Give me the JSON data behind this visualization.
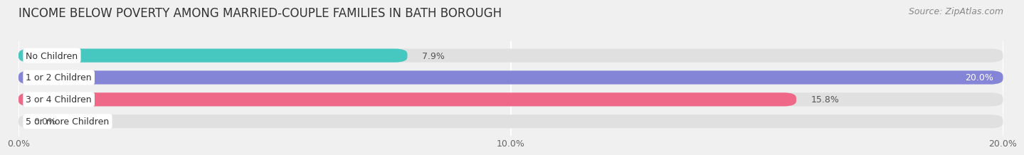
{
  "title": "INCOME BELOW POVERTY AMONG MARRIED-COUPLE FAMILIES IN BATH BOROUGH",
  "source": "Source: ZipAtlas.com",
  "categories": [
    "No Children",
    "1 or 2 Children",
    "3 or 4 Children",
    "5 or more Children"
  ],
  "values": [
    7.9,
    20.0,
    15.8,
    0.0
  ],
  "value_labels": [
    "7.9%",
    "20.0%",
    "15.8%",
    "0.0%"
  ],
  "bar_colors": [
    "#46c8c0",
    "#8585d8",
    "#f06888",
    "#f5c99a"
  ],
  "xlim": [
    0,
    20.0
  ],
  "xticks": [
    0.0,
    10.0,
    20.0
  ],
  "xtick_labels": [
    "0.0%",
    "10.0%",
    "20.0%"
  ],
  "background_color": "#f0f0f0",
  "bar_bg_color": "#e0e0e0",
  "title_fontsize": 12,
  "source_fontsize": 9,
  "label_fontsize": 9,
  "value_fontsize": 9,
  "tick_fontsize": 9
}
